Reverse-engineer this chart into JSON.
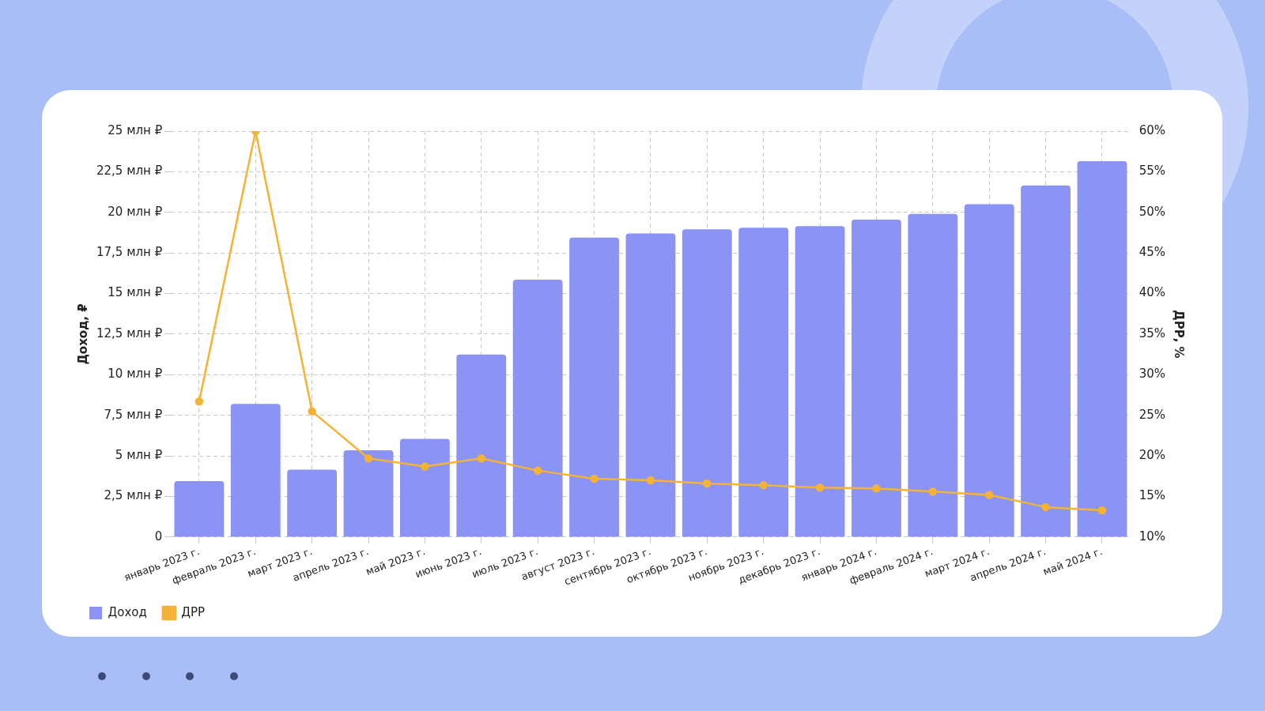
{
  "chart_data": {
    "type": "bar",
    "xlabel": null,
    "ylabel": "Доход, ₽",
    "y2label": "ДРР, %",
    "categories": [
      "январь 2023 г.",
      "февраль 2023 г.",
      "март 2023 г.",
      "апрель 2023 г.",
      "май 2023 г.",
      "июнь 2023 г.",
      "июль 2023 г.",
      "август 2023 г.",
      "сентябрь 2023 г.",
      "октябрь 2023 г.",
      "ноябрь 2023 г.",
      "декабрь 2023 г.",
      "январь 2024 г.",
      "февраль 2024 г.",
      "март 2024 г.",
      "апрель 2024 г.",
      "май 2024 г."
    ],
    "series": [
      {
        "name": "Доход",
        "color": "#8b93f5",
        "values": [
          3.45,
          8.2,
          4.15,
          5.35,
          6.05,
          11.25,
          15.85,
          18.45,
          18.7,
          18.95,
          19.05,
          19.15,
          19.55,
          19.9,
          20.5,
          21.65,
          23.15
        ]
      },
      {
        "name": "ДРР",
        "type": "line",
        "axis": "y2",
        "color": "#f5b335",
        "marker": "circle",
        "values": [
          26.7,
          60,
          25.5,
          19.7,
          18.7,
          19.7,
          18.2,
          17.2,
          17.0,
          16.6,
          16.4,
          16.1,
          16.0,
          15.6,
          15.2,
          13.7,
          13.3
        ]
      }
    ],
    "ylim": [
      0,
      25
    ],
    "yticks": [
      {
        "value": 0,
        "label": "0"
      },
      {
        "value": 2.5,
        "label": "2,5 млн ₽"
      },
      {
        "value": 5,
        "label": "5 млн ₽"
      },
      {
        "value": 7.5,
        "label": "7,5 млн ₽"
      },
      {
        "value": 10,
        "label": "10 млн ₽"
      },
      {
        "value": 12.5,
        "label": "12,5 млн ₽"
      },
      {
        "value": 15,
        "label": "15 млн ₽"
      },
      {
        "value": 17.5,
        "label": "17,5 млн ₽"
      },
      {
        "value": 20,
        "label": "20 млн ₽"
      },
      {
        "value": 22.5,
        "label": "22,5 млн ₽"
      },
      {
        "value": 25,
        "label": "25 млн ₽"
      }
    ],
    "y2lim": [
      10,
      60
    ],
    "y2ticks": [
      {
        "value": 10,
        "label": "10%"
      },
      {
        "value": 15,
        "label": "15%"
      },
      {
        "value": 20,
        "label": "20%"
      },
      {
        "value": 25,
        "label": "25%"
      },
      {
        "value": 30,
        "label": "30%"
      },
      {
        "value": 35,
        "label": "35%"
      },
      {
        "value": 40,
        "label": "40%"
      },
      {
        "value": 45,
        "label": "45%"
      },
      {
        "value": 50,
        "label": "50%"
      },
      {
        "value": 55,
        "label": "55%"
      },
      {
        "value": 60,
        "label": "60%"
      }
    ],
    "grid": true,
    "legend": "bottom left",
    "line_style": "solid"
  }
}
